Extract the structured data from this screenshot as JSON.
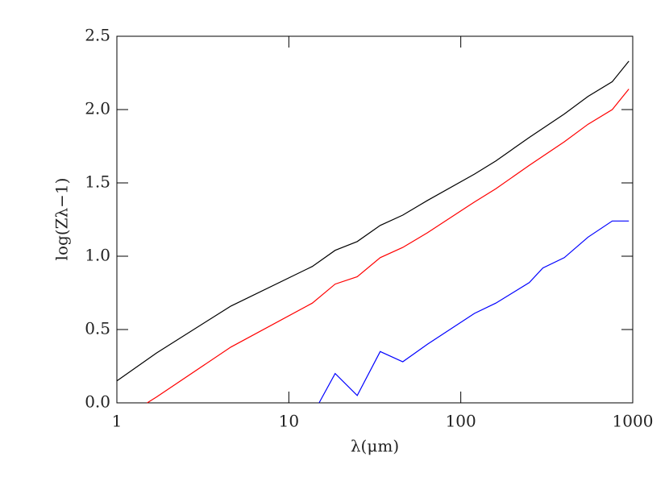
{
  "chart_data": {
    "type": "line",
    "xlabel": "λ(μm)",
    "ylabel": "log(Zλ−1)",
    "xscale": "log",
    "xlim": [
      1,
      1000
    ],
    "xticks": [
      1,
      10,
      100,
      1000
    ],
    "ylim": [
      0,
      2.5
    ],
    "yticks": [
      {
        "value": 0,
        "label": "0.0"
      },
      0.5,
      {
        "value": 1,
        "label": "1.0"
      },
      1.5,
      {
        "value": 2,
        "label": "2.0"
      },
      2.5
    ],
    "series": [
      {
        "color": "#000000",
        "x": [
          1,
          1.7,
          4.6,
          13.7,
          18.6,
          25,
          34,
          46,
          64,
          120,
          160,
          250,
          400,
          550,
          760,
          950
        ],
        "values": [
          0.15,
          0.34,
          0.66,
          0.93,
          1.04,
          1.1,
          1.21,
          1.28,
          1.38,
          1.56,
          1.65,
          1.81,
          1.97,
          2.09,
          2.19,
          2.33
        ]
      },
      {
        "color": "#ff0000",
        "x": [
          1.5,
          1.7,
          4.6,
          13.7,
          18.6,
          25,
          34,
          46,
          64,
          120,
          160,
          250,
          400,
          550,
          760,
          950
        ],
        "values": [
          0,
          0.04,
          0.38,
          0.68,
          0.81,
          0.86,
          0.99,
          1.06,
          1.16,
          1.37,
          1.46,
          1.62,
          1.78,
          1.9,
          2.0,
          2.14
        ]
      },
      {
        "color": "#0000ff",
        "x": [
          15,
          18.6,
          25,
          34,
          46,
          64,
          120,
          160,
          250,
          300,
          400,
          550,
          760,
          950
        ],
        "values": [
          0,
          0.2,
          0.05,
          0.35,
          0.28,
          0.4,
          0.61,
          0.68,
          0.82,
          0.92,
          0.99,
          1.13,
          1.24,
          1.24
        ]
      }
    ]
  }
}
